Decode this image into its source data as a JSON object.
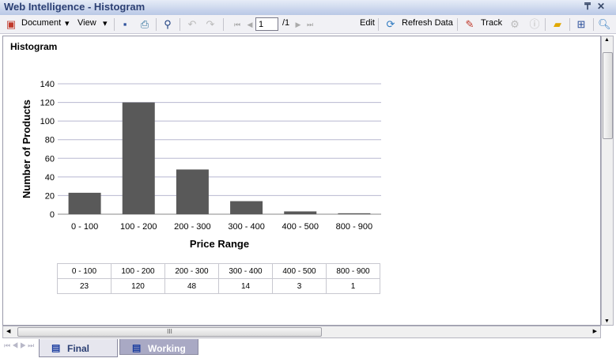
{
  "window": {
    "title": "Web Intelligence - Histogram",
    "pin": "₸",
    "close": "✕"
  },
  "toolbar": {
    "document": "Document",
    "view": "View",
    "page": "1",
    "page_total": "/1",
    "edit": "Edit",
    "refresh": "Refresh Data",
    "track": "Track"
  },
  "report": {
    "title": "Histogram"
  },
  "tabs": [
    {
      "label": "Final",
      "active": true
    },
    {
      "label": "Working",
      "active": false
    }
  ],
  "chart_data": {
    "type": "bar",
    "categories": [
      "0 - 100",
      "100 - 200",
      "200 - 300",
      "300 - 400",
      "400 - 500",
      "800 - 900"
    ],
    "values": [
      23,
      120,
      48,
      14,
      3,
      1
    ],
    "xlabel": "Price Range",
    "ylabel": "Number of Products",
    "ylim": [
      0,
      140
    ],
    "yticks": [
      0,
      20,
      40,
      60,
      80,
      100,
      120,
      140
    ],
    "grid": true,
    "bar_color": "#595959"
  },
  "table": {
    "headers": [
      "0 - 100",
      "100 - 200",
      "200 - 300",
      "300 - 400",
      "400 - 500",
      "800 - 900"
    ],
    "values": [
      "23",
      "120",
      "48",
      "14",
      "3",
      "1"
    ]
  }
}
